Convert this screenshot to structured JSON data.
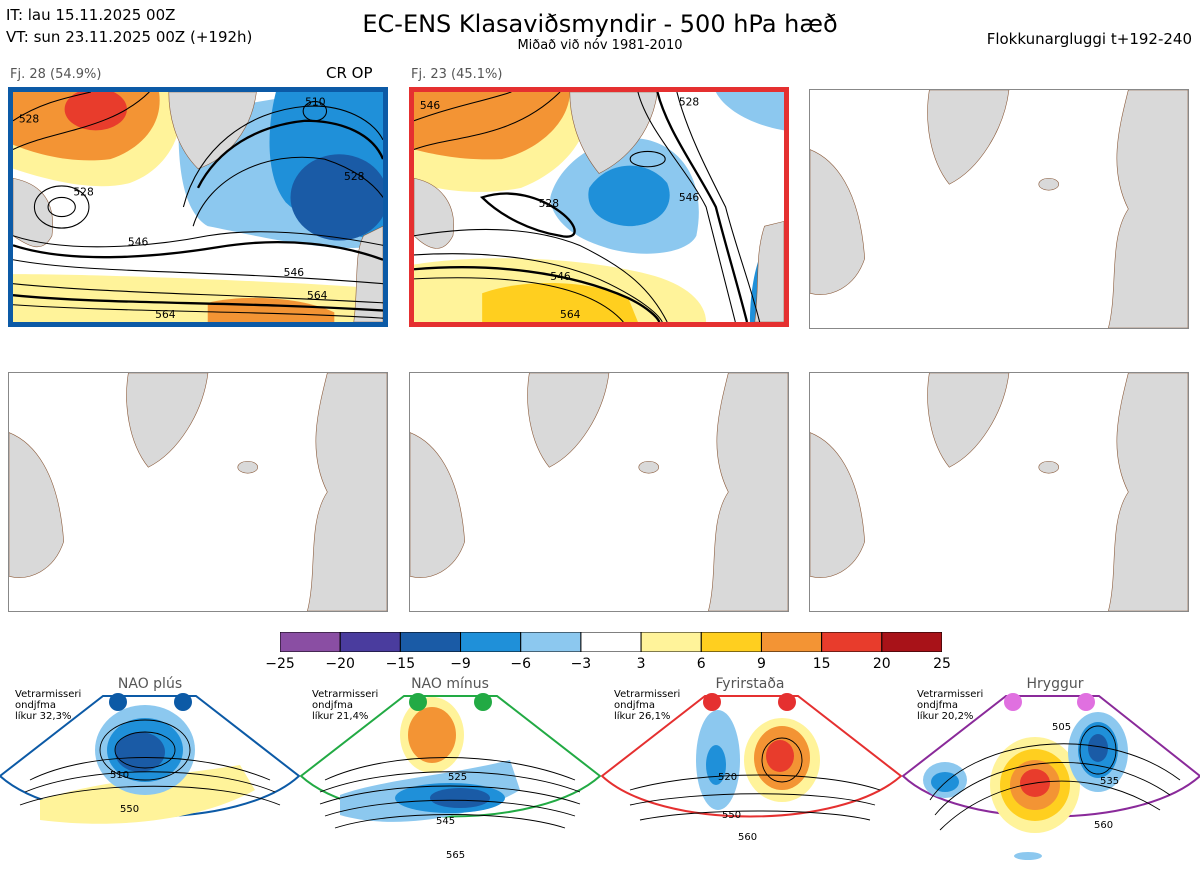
{
  "header": {
    "it": "IT: lau 15.11.2025 00Z",
    "vt": "VT: sun 23.11.2025 00Z  (+192h)",
    "title": "EC-ENS Klasaviðsmyndir - 500 hPa hæð",
    "subtitle": "Miðað við nóv 1981-2010",
    "window": "Flokkunargluggi t+192-240"
  },
  "clusters": [
    {
      "label": "Fj. 28 (54.9%)",
      "tag": "CR OP",
      "color": "#0c5aa6",
      "contour_labels": [
        "528",
        "510",
        "528",
        "528",
        "546",
        "546",
        "564",
        "564"
      ]
    },
    {
      "label": "Fj. 23 (45.1%)",
      "tag": "",
      "color": "#e53030",
      "contour_labels": [
        "546",
        "528",
        "528",
        "546",
        "546",
        "564"
      ]
    }
  ],
  "colorbar": {
    "ticks": [
      "−25",
      "−20",
      "−15",
      "−9",
      "−6",
      "−3",
      "3",
      "6",
      "9",
      "15",
      "20",
      "25"
    ],
    "colors": [
      "#8a4ea3",
      "#4a3c9e",
      "#1a5ba6",
      "#1f90d9",
      "#8cc8ef",
      "#ffffff",
      "#fff39a",
      "#ffcf1f",
      "#f39434",
      "#e83c2c",
      "#a81218"
    ]
  },
  "regimes": [
    {
      "name": "NAO plús",
      "note_line1": "Vetrarmisseri",
      "note_line2": "ondjfma",
      "note_line3": "líkur 32,3%",
      "color": "#0c5aa6",
      "contour_labels": [
        "510",
        "550"
      ]
    },
    {
      "name": "NAO mínus",
      "note_line1": "Vetrarmisseri",
      "note_line2": "ondjfma",
      "note_line3": "líkur 21,4%",
      "color": "#22aa44",
      "contour_labels": [
        "525",
        "545",
        "565"
      ]
    },
    {
      "name": "Fyrirstaða",
      "note_line1": "Vetrarmisseri",
      "note_line2": "ondjfma",
      "note_line3": "líkur 26,1%",
      "color": "#e53030",
      "contour_labels": [
        "520",
        "550",
        "560"
      ]
    },
    {
      "name": "Hryggur",
      "note_line1": "Vetrarmisseri",
      "note_line2": "ondjfma",
      "note_line3": "líkur 20,2%",
      "color": "#8a2a9a",
      "contour_labels": [
        "505",
        "535",
        "560"
      ]
    }
  ],
  "icons": {
    "land": "land-mass-icon",
    "marker": "regime-dot-icon"
  }
}
